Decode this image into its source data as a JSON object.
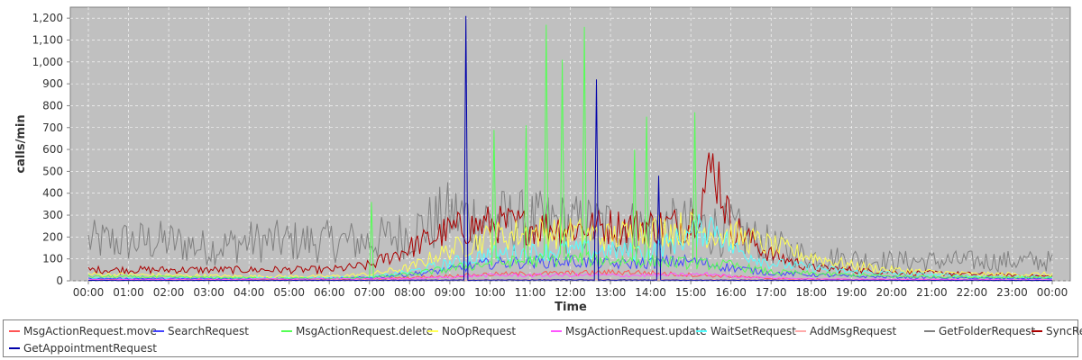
{
  "chart_data": {
    "type": "line",
    "title": "",
    "xlabel": "Time",
    "ylabel": "calls/min",
    "ylim": [
      0,
      1250
    ],
    "y_ticks": [
      0,
      100,
      200,
      300,
      400,
      500,
      600,
      700,
      800,
      900,
      "1,000",
      "1,100",
      "1,200"
    ],
    "y_tick_values": [
      0,
      100,
      200,
      300,
      400,
      500,
      600,
      700,
      800,
      900,
      1000,
      1100,
      1200
    ],
    "x_tick_labels": [
      "00:00",
      "01:00",
      "02:00",
      "03:00",
      "04:00",
      "05:00",
      "06:00",
      "07:00",
      "08:00",
      "09:00",
      "10:00",
      "11:00",
      "12:00",
      "13:00",
      "14:00",
      "15:00",
      "16:00",
      "17:00",
      "18:00",
      "19:00",
      "20:00",
      "21:00",
      "22:00",
      "23:00",
      "00:00"
    ],
    "xlim_hours": [
      0,
      24
    ],
    "grid": true,
    "legend_position": "bottom",
    "plot_background": "#c0c0c0",
    "series": [
      {
        "name": "MsgActionRequest.move",
        "color": "#ff5555",
        "hours": [
          0,
          6,
          7,
          8,
          10,
          12,
          13.5,
          14.6,
          16,
          17,
          19,
          22,
          24
        ],
        "values": [
          5,
          5,
          8,
          15,
          30,
          35,
          40,
          30,
          20,
          10,
          5,
          3,
          3
        ]
      },
      {
        "name": "SearchRequest",
        "color": "#4444ff",
        "hours": [
          0,
          6,
          7,
          8,
          9,
          10,
          12,
          13,
          15,
          16,
          17,
          19,
          22,
          24
        ],
        "values": [
          10,
          10,
          15,
          30,
          50,
          80,
          90,
          75,
          90,
          60,
          35,
          20,
          12,
          10
        ]
      },
      {
        "name": "MsgActionRequest.delete",
        "color": "#55ff55",
        "hours": [
          0,
          3,
          6,
          7,
          8,
          10,
          12,
          14,
          16,
          17,
          20,
          24
        ],
        "values": [
          20,
          15,
          10,
          15,
          30,
          80,
          100,
          90,
          70,
          40,
          20,
          15
        ],
        "spikes": [
          [
            7.05,
            360
          ],
          [
            10.1,
            690
          ],
          [
            10.9,
            710
          ],
          [
            11.4,
            1170
          ],
          [
            11.8,
            1010
          ],
          [
            12.35,
            1160
          ],
          [
            13.6,
            600
          ],
          [
            13.9,
            750
          ],
          [
            15.1,
            770
          ]
        ]
      },
      {
        "name": "NoOpRequest",
        "color": "#ffff55",
        "hours": [
          0,
          4,
          6,
          7,
          8,
          9,
          10,
          11,
          12,
          13,
          14,
          15,
          16,
          17,
          18,
          19,
          20,
          21,
          22,
          24
        ],
        "values": [
          30,
          20,
          20,
          30,
          60,
          140,
          200,
          220,
          220,
          200,
          230,
          240,
          210,
          160,
          110,
          70,
          50,
          40,
          30,
          30
        ]
      },
      {
        "name": "MsgActionRequest.update",
        "color": "#ff55ff",
        "hours": [
          0,
          8,
          10,
          12,
          14,
          15.6,
          16,
          18,
          24
        ],
        "values": [
          5,
          10,
          25,
          25,
          25,
          30,
          20,
          8,
          5
        ]
      },
      {
        "name": "WaitSetRequest",
        "color": "#55ffff",
        "hours": [
          0,
          7,
          8,
          9,
          10,
          12,
          14,
          15.6,
          16,
          17,
          19,
          22,
          24
        ],
        "values": [
          10,
          15,
          40,
          80,
          120,
          140,
          130,
          260,
          150,
          80,
          40,
          20,
          15
        ]
      },
      {
        "name": "AddMsgRequest",
        "color": "#ffaaaa",
        "hours": [
          0,
          8,
          12,
          16,
          20,
          24
        ],
        "values": [
          2,
          4,
          6,
          5,
          3,
          2
        ]
      },
      {
        "name": "GetFolderRequest",
        "color": "#808080",
        "hours": [
          0,
          2,
          3,
          4,
          5,
          7,
          8,
          9,
          10,
          12,
          14,
          15,
          16,
          17,
          18,
          20,
          22,
          24
        ],
        "values": [
          180,
          180,
          150,
          180,
          180,
          180,
          220,
          300,
          280,
          260,
          240,
          250,
          230,
          160,
          110,
          90,
          90,
          90
        ]
      },
      {
        "name": "SyncRequest",
        "color": "#aa0000",
        "hours": [
          0,
          2,
          3,
          4,
          5,
          6,
          7,
          8,
          9,
          10,
          11,
          12,
          13,
          14,
          15,
          15.6,
          16,
          17,
          18,
          20,
          22,
          24
        ],
        "values": [
          50,
          50,
          50,
          50,
          50,
          50,
          70,
          150,
          230,
          260,
          250,
          240,
          250,
          250,
          260,
          540,
          250,
          120,
          60,
          40,
          30,
          20
        ]
      },
      {
        "name": "GetAppointmentRequest",
        "color": "#0000aa",
        "hours": [
          0,
          8,
          12,
          16,
          24
        ],
        "values": [
          2,
          3,
          4,
          3,
          2
        ],
        "spikes": [
          [
            9.38,
            1210
          ],
          [
            12.65,
            920
          ],
          [
            14.2,
            480
          ]
        ]
      }
    ]
  }
}
